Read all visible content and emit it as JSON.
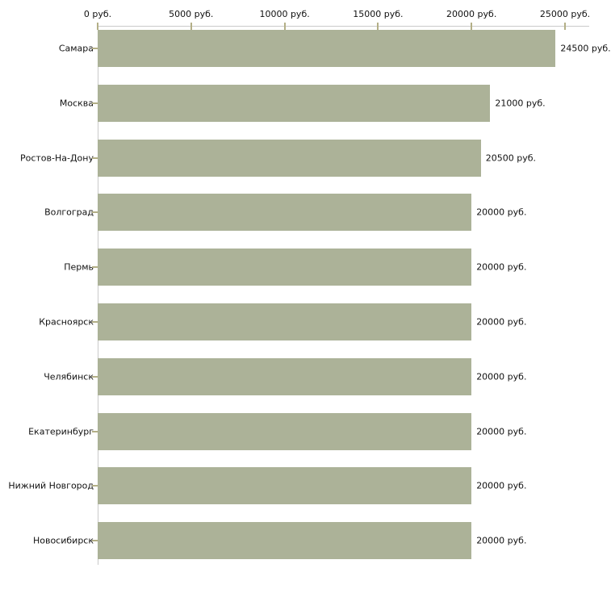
{
  "chart_data": {
    "type": "bar",
    "orientation": "horizontal",
    "title": "",
    "xlabel": "",
    "ylabel": "",
    "unit": "руб.",
    "categories": [
      "Самара",
      "Москва",
      "Ростов-На-Дону",
      "Волгоград",
      "Пермь",
      "Красноярск",
      "Челябинск",
      "Екатеринбург",
      "Нижний Новгород",
      "Новосибирск"
    ],
    "values": [
      24500,
      21000,
      20500,
      20000,
      20000,
      20000,
      20000,
      20000,
      20000,
      20000
    ],
    "bar_labels": [
      "24500 руб.",
      "21000 руб.",
      "20500 руб.",
      "20000 руб.",
      "20000 руб.",
      "20000 руб.",
      "20000 руб.",
      "20000 руб.",
      "20000 руб.",
      "20000 руб."
    ],
    "x_axis": {
      "position": "top",
      "tick_values": [
        0,
        5000,
        10000,
        15000,
        20000,
        25000
      ],
      "tick_labels": [
        "0 руб.",
        "5000 руб.",
        "10000 руб.",
        "15000 руб.",
        "20000 руб.",
        "25000 руб."
      ],
      "range": [
        0,
        25000
      ]
    },
    "grid": false,
    "legend": false
  },
  "colors": {
    "background": "#ffffff",
    "bar": "#acb298",
    "axis_line": "#c9c9c9",
    "tick_mark": "#b3af86",
    "text": "#111111"
  }
}
